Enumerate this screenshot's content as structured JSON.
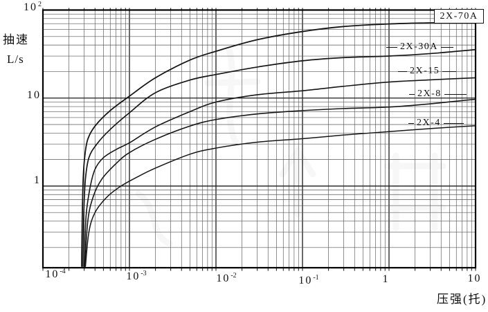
{
  "chart_data": {
    "type": "line",
    "title": "",
    "grid": "log-log full graph paper",
    "legend_position": "right-inline-labels",
    "x_axis": {
      "label": "压强(托)",
      "scale": "log",
      "min": 0.0001,
      "max": 10,
      "ticks": [
        {
          "base": "10",
          "exp": "-4",
          "value": 0.0001
        },
        {
          "base": "10",
          "exp": "-3",
          "value": 0.001
        },
        {
          "base": "10",
          "exp": "-2",
          "value": 0.01
        },
        {
          "base": "10",
          "exp": "-1",
          "value": 0.1
        },
        {
          "base": "1",
          "exp": "",
          "value": 1
        },
        {
          "base": "10",
          "exp": "",
          "value": 10
        }
      ]
    },
    "y_axis": {
      "label": "抽速",
      "unit_label": "L/s",
      "scale": "log",
      "min": 0.118,
      "max": 100,
      "ticks": [
        {
          "base": "10",
          "exp": "2",
          "value": 100
        },
        {
          "base": "10",
          "exp": "",
          "value": 10
        },
        {
          "base": "1",
          "exp": "",
          "value": 1
        }
      ]
    },
    "series": [
      {
        "name": "2X-70A",
        "boxed_label": true,
        "nominal_speed_l_s": 70,
        "points": [
          [
            0.00028,
            0.122
          ],
          [
            0.000285,
            0.45
          ],
          [
            0.000292,
            1.2
          ],
          [
            0.000305,
            2.2
          ],
          [
            0.00033,
            3.4
          ],
          [
            0.0004,
            4.8
          ],
          [
            0.0006,
            7.2
          ],
          [
            0.001,
            10.5
          ],
          [
            0.002,
            17
          ],
          [
            0.005,
            27
          ],
          [
            0.01,
            34
          ],
          [
            0.03,
            46
          ],
          [
            0.1,
            57
          ],
          [
            0.3,
            65
          ],
          [
            1,
            69.5
          ],
          [
            3,
            71.5
          ],
          [
            10,
            73
          ]
        ]
      },
      {
        "name": "2X-30A",
        "boxed_label": false,
        "nominal_speed_l_s": 30,
        "points": [
          [
            0.00029,
            0.122
          ],
          [
            0.000297,
            0.5
          ],
          [
            0.00031,
            1.2
          ],
          [
            0.00034,
            2.1
          ],
          [
            0.00042,
            3.0
          ],
          [
            0.0006,
            4.4
          ],
          [
            0.001,
            6.8
          ],
          [
            0.002,
            11.5
          ],
          [
            0.005,
            16
          ],
          [
            0.01,
            18.5
          ],
          [
            0.03,
            22.5
          ],
          [
            0.1,
            26.5
          ],
          [
            0.3,
            28.8
          ],
          [
            1,
            30
          ],
          [
            3,
            32
          ],
          [
            10,
            35.5
          ]
        ]
      },
      {
        "name": "2X-15",
        "boxed_label": false,
        "nominal_speed_l_s": 15,
        "points": [
          [
            0.0003,
            0.122
          ],
          [
            0.000315,
            0.45
          ],
          [
            0.00035,
            0.95
          ],
          [
            0.0004,
            1.55
          ],
          [
            0.0005,
            2.1
          ],
          [
            0.0007,
            2.6
          ],
          [
            0.001,
            3.1
          ],
          [
            0.002,
            4.7
          ],
          [
            0.005,
            7.0
          ],
          [
            0.01,
            9.0
          ],
          [
            0.03,
            10.9
          ],
          [
            0.1,
            12.1
          ],
          [
            0.3,
            13.6
          ],
          [
            1,
            15.2
          ],
          [
            3,
            16.1
          ],
          [
            10,
            17
          ]
        ]
      },
      {
        "name": "2X-8",
        "boxed_label": false,
        "nominal_speed_l_s": 8,
        "points": [
          [
            0.000305,
            0.122
          ],
          [
            0.00033,
            0.4
          ],
          [
            0.00038,
            0.75
          ],
          [
            0.00048,
            1.2
          ],
          [
            0.0007,
            1.8
          ],
          [
            0.001,
            2.4
          ],
          [
            0.002,
            3.4
          ],
          [
            0.005,
            4.8
          ],
          [
            0.01,
            5.7
          ],
          [
            0.03,
            6.6
          ],
          [
            0.1,
            7.2
          ],
          [
            0.3,
            7.6
          ],
          [
            1,
            7.9
          ],
          [
            3,
            8.6
          ],
          [
            10,
            9.7
          ]
        ]
      },
      {
        "name": "2X-4",
        "boxed_label": false,
        "nominal_speed_l_s": 4,
        "points": [
          [
            0.00031,
            0.122
          ],
          [
            0.00034,
            0.3
          ],
          [
            0.0004,
            0.5
          ],
          [
            0.00055,
            0.75
          ],
          [
            0.0008,
            1.0
          ],
          [
            0.0012,
            1.25
          ],
          [
            0.002,
            1.6
          ],
          [
            0.005,
            2.3
          ],
          [
            0.01,
            2.7
          ],
          [
            0.03,
            3.15
          ],
          [
            0.1,
            3.45
          ],
          [
            0.3,
            3.8
          ],
          [
            1,
            4.15
          ],
          [
            3,
            4.5
          ],
          [
            10,
            4.85
          ]
        ]
      }
    ]
  }
}
